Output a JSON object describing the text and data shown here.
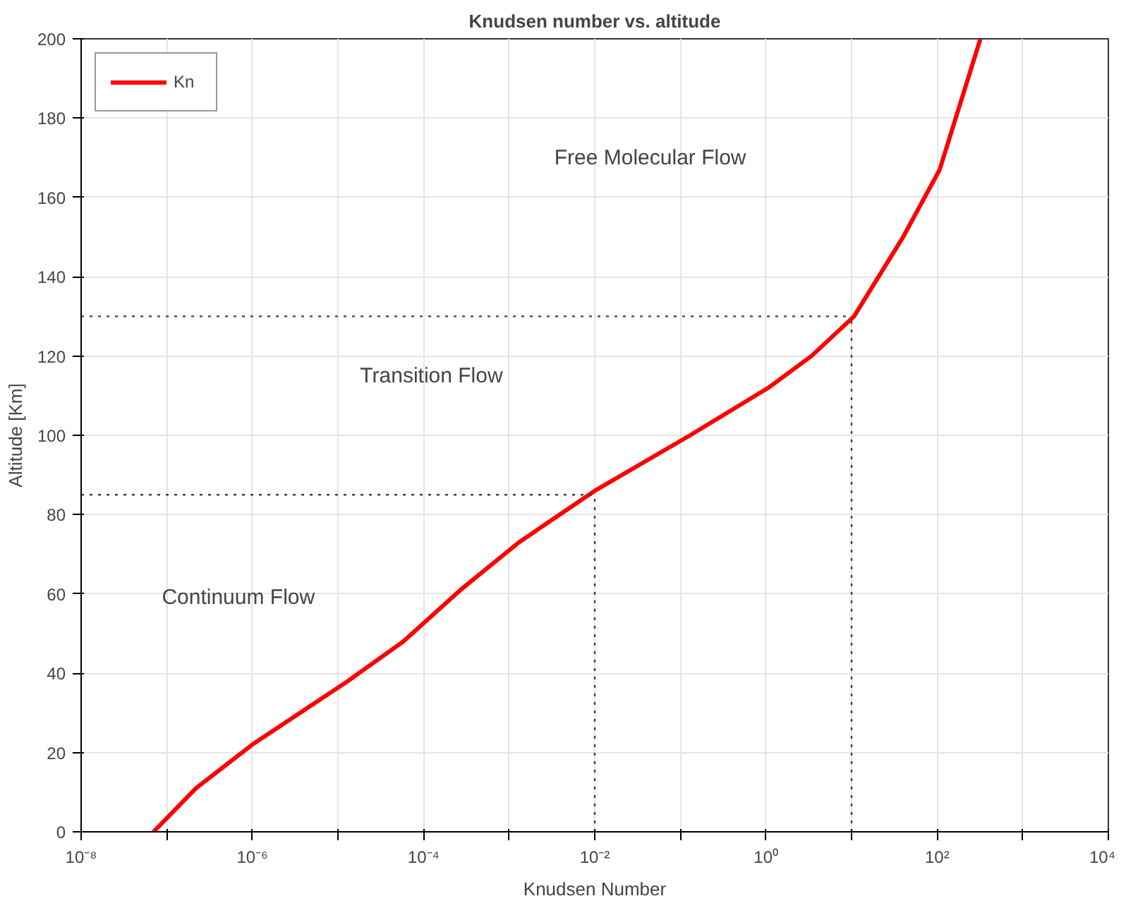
{
  "chart_data": {
    "type": "line",
    "title": "Knudsen number vs. altitude",
    "xlabel": "Knudsen Number",
    "ylabel": "Altitude [Km]",
    "log": "x",
    "grid": true,
    "legend": "top left",
    "line_style": "solid",
    "xlim": [
      1e-08,
      10000.0
    ],
    "ylim": [
      0,
      200
    ],
    "xticks": [
      {
        "value": 1e-08,
        "label": "10⁻⁸"
      },
      {
        "value": 1e-07,
        "label": null
      },
      {
        "value": 1e-06,
        "label": "10⁻⁶"
      },
      {
        "value": 1e-05,
        "label": null
      },
      {
        "value": 0.0001,
        "label": "10⁻⁴"
      },
      {
        "value": 0.001,
        "label": null
      },
      {
        "value": 0.01,
        "label": "10⁻²"
      },
      {
        "value": 0.1,
        "label": null
      },
      {
        "value": 1,
        "label": "10⁰"
      },
      {
        "value": 10,
        "label": null
      },
      {
        "value": 100,
        "label": "10²"
      },
      {
        "value": 1000,
        "label": null
      },
      {
        "value": 10000,
        "label": "10⁴"
      }
    ],
    "yticks": [
      0,
      20,
      40,
      60,
      80,
      100,
      120,
      140,
      160,
      180,
      200
    ],
    "x": [
      7e-08,
      2.2e-07,
      1e-06,
      1.3e-05,
      5.8e-05,
      0.00027,
      0.0013,
      0.01,
      0.13,
      1.07,
      3.4,
      10.7,
      40,
      107,
      320
    ],
    "series": [
      {
        "name": "Kn",
        "color": "#ff0000",
        "values": [
          0,
          11,
          22,
          38,
          48,
          61,
          73,
          86,
          100,
          112,
          120,
          130,
          150,
          167,
          200
        ]
      }
    ],
    "ref_lines": [
      {
        "axis": "y",
        "value": 85,
        "line_style": "dotted",
        "color": "#404040"
      },
      {
        "axis": "y",
        "value": 130,
        "line_style": "dotted",
        "color": "#404040"
      },
      {
        "axis": "x",
        "value": 0.01,
        "line_style": "dotted",
        "color": "#404040"
      },
      {
        "axis": "x",
        "value": 10,
        "line_style": "dotted",
        "color": "#404040"
      }
    ],
    "annotations": [
      "Free Molecular Flow",
      "Transition Flow",
      "Continuum Flow"
    ]
  }
}
